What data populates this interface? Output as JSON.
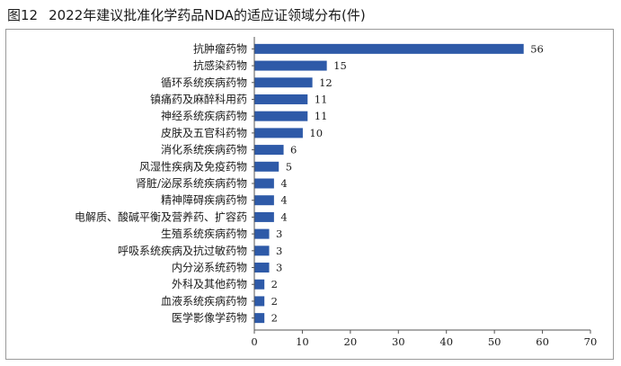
{
  "figure": {
    "number": "图12",
    "caption": "2022年建议批准化学药品NDA的适应证领域分布(件)"
  },
  "chart_data": {
    "type": "bar",
    "orientation": "horizontal",
    "categories": [
      "抗肿瘤药物",
      "抗感染药物",
      "循环系统疾病药物",
      "镇痛药及麻醉科用药",
      "神经系统疾病药物",
      "皮肤及五官科药物",
      "消化系统疾病药物",
      "风湿性疾病及免疫药物",
      "肾脏/泌尿系统疾病药物",
      "精神障碍疾病药物",
      "电解质、酸碱平衡及营养药、扩容药",
      "生殖系统疾病药物",
      "呼吸系统疾病及抗过敏药物",
      "内分泌系统药物",
      "外科及其他药物",
      "血液系统疾病药物",
      "医学影像学药物"
    ],
    "values": [
      56,
      15,
      12,
      11,
      11,
      10,
      6,
      5,
      4,
      4,
      4,
      3,
      3,
      3,
      2,
      2,
      2
    ],
    "xlim": [
      0,
      70
    ],
    "xticks": [
      0,
      10,
      20,
      30,
      40,
      50,
      60,
      70
    ],
    "title": "",
    "xlabel": "",
    "ylabel": "",
    "grid": false,
    "bar_color": "#2e5aa8",
    "show_data_labels": true
  }
}
